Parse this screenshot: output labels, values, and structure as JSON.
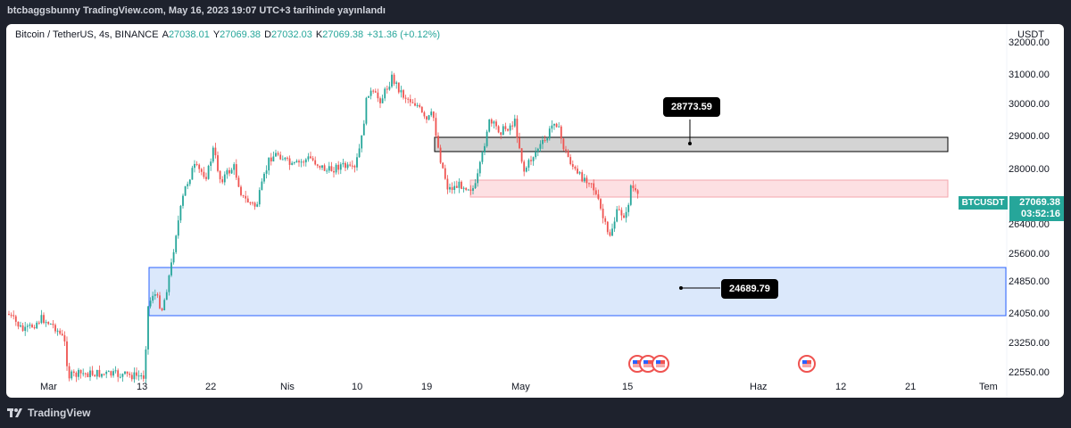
{
  "header": {
    "caption": "btcbaggsbunny TradingView.com, May 16, 2023 19:07 UTC+3 tarihinde yayınlandı"
  },
  "legend": {
    "symbol": "Bitcoin / TetherUS, 4s, BINANCE",
    "open_label": "A",
    "open": "27038.01",
    "high_label": "Y",
    "high": "27069.38",
    "low_label": "D",
    "low": "27032.03",
    "close_label": "K",
    "close": "27069.38",
    "change": "+31.36 (+0.12%)"
  },
  "price_axis": {
    "currency": "USDT",
    "ticks": [
      "32000.00",
      "31000.00",
      "30000.00",
      "29000.00",
      "28000.00",
      "26400.00",
      "25600.00",
      "24850.00",
      "24050.00",
      "23250.00",
      "22550.00"
    ]
  },
  "time_axis": {
    "ticks": [
      "Mar",
      "13",
      "22",
      "Nis",
      "10",
      "19",
      "May",
      "15",
      "Haz",
      "12",
      "21",
      "Tem"
    ]
  },
  "current_price": {
    "symbol": "BTCUSDT",
    "value": "27069.38",
    "countdown": "03:52:16",
    "color": "#26a69a"
  },
  "annotations": {
    "upper_label": "28773.59",
    "lower_label": "24689.79"
  },
  "zones": {
    "gray_zone_color": "#d4d4d4",
    "red_zone_color": "#fde0e3",
    "blue_zone_color": "#dbe8fb",
    "blue_zone_border": "#2962ff"
  },
  "colors": {
    "up": "#26a69a",
    "down": "#ef5350"
  },
  "footer": {
    "brand": "TradingView"
  }
}
